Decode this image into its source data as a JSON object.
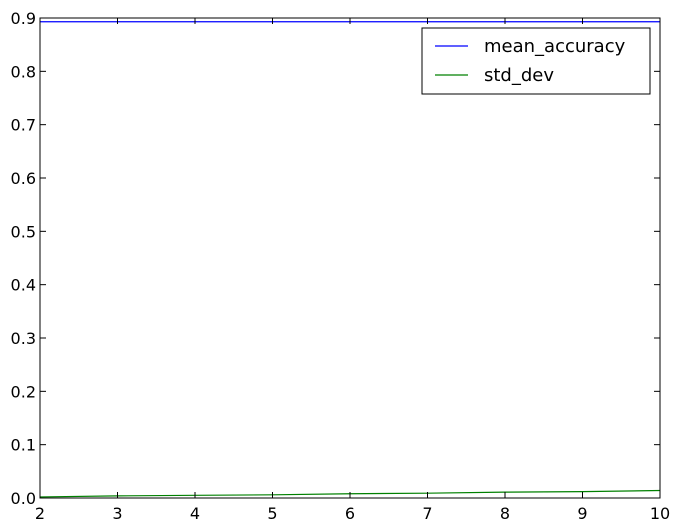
{
  "chart_data": {
    "type": "line",
    "title": "",
    "xlabel": "",
    "ylabel": "",
    "xlim": [
      2,
      10
    ],
    "ylim": [
      0.0,
      0.9
    ],
    "x": [
      2,
      3,
      4,
      5,
      6,
      7,
      8,
      9,
      10
    ],
    "x_ticks": [
      2,
      3,
      4,
      5,
      6,
      7,
      8,
      9,
      10
    ],
    "y_ticks": [
      "0.0",
      "0.1",
      "0.2",
      "0.3",
      "0.4",
      "0.5",
      "0.6",
      "0.7",
      "0.8",
      "0.9"
    ],
    "grid": false,
    "legend_position": "top-right",
    "series": [
      {
        "name": "mean_accuracy",
        "color": "#0000ff",
        "values": [
          0.893,
          0.893,
          0.893,
          0.893,
          0.893,
          0.893,
          0.893,
          0.893,
          0.893
        ]
      },
      {
        "name": "std_dev",
        "color": "#008000",
        "values": [
          0.002,
          0.004,
          0.005,
          0.006,
          0.008,
          0.009,
          0.011,
          0.012,
          0.014
        ]
      }
    ]
  }
}
